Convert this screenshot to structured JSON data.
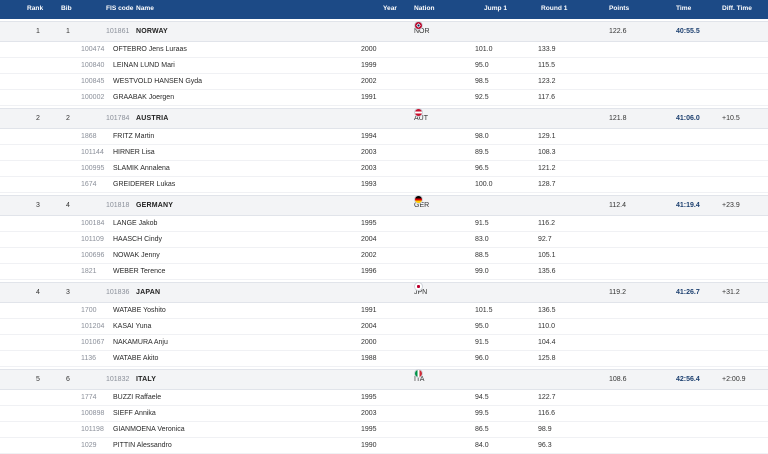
{
  "headers": {
    "rank": "Rank",
    "bib": "Bib",
    "fis_code": "FIS code",
    "name": "Name",
    "year": "Year",
    "nation": "Nation",
    "jump1": "Jump 1",
    "round1": "Round 1",
    "points": "Points",
    "time": "Time",
    "diff_time": "Diff. Time"
  },
  "teams": [
    {
      "rank": "1",
      "bib": "1",
      "fis": "101861",
      "name": "NORWAY",
      "nation": "NOR",
      "flag": "nor",
      "points": "122.6",
      "time": "40:55.5",
      "diff": "",
      "athletes": [
        {
          "fis": "100474",
          "name": "OFTEBRO Jens Luraas",
          "year": "2000",
          "jump1": "101.0",
          "round1": "133.9"
        },
        {
          "fis": "100840",
          "name": "LEINAN LUND Mari",
          "year": "1999",
          "jump1": "95.0",
          "round1": "115.5"
        },
        {
          "fis": "100845",
          "name": "WESTVOLD HANSEN Gyda",
          "year": "2002",
          "jump1": "98.5",
          "round1": "123.2"
        },
        {
          "fis": "100002",
          "name": "GRAABAK Joergen",
          "year": "1991",
          "jump1": "92.5",
          "round1": "117.6"
        }
      ]
    },
    {
      "rank": "2",
      "bib": "2",
      "fis": "101784",
      "name": "AUSTRIA",
      "nation": "AUT",
      "flag": "aut",
      "points": "121.8",
      "time": "41:06.0",
      "diff": "+10.5",
      "athletes": [
        {
          "fis": "1868",
          "name": "FRITZ Martin",
          "year": "1994",
          "jump1": "98.0",
          "round1": "129.1"
        },
        {
          "fis": "101144",
          "name": "HIRNER Lisa",
          "year": "2003",
          "jump1": "89.5",
          "round1": "108.3"
        },
        {
          "fis": "100995",
          "name": "SLAMIK Annalena",
          "year": "2003",
          "jump1": "96.5",
          "round1": "121.2"
        },
        {
          "fis": "1674",
          "name": "GREIDERER Lukas",
          "year": "1993",
          "jump1": "100.0",
          "round1": "128.7"
        }
      ]
    },
    {
      "rank": "3",
      "bib": "4",
      "fis": "101818",
      "name": "GERMANY",
      "nation": "GER",
      "flag": "ger",
      "points": "112.4",
      "time": "41:19.4",
      "diff": "+23.9",
      "athletes": [
        {
          "fis": "100184",
          "name": "LANGE Jakob",
          "year": "1995",
          "jump1": "91.5",
          "round1": "116.2"
        },
        {
          "fis": "101109",
          "name": "HAASCH Cindy",
          "year": "2004",
          "jump1": "83.0",
          "round1": "92.7"
        },
        {
          "fis": "100696",
          "name": "NOWAK Jenny",
          "year": "2002",
          "jump1": "88.5",
          "round1": "105.1"
        },
        {
          "fis": "1821",
          "name": "WEBER Terence",
          "year": "1996",
          "jump1": "99.0",
          "round1": "135.6"
        }
      ]
    },
    {
      "rank": "4",
      "bib": "3",
      "fis": "101836",
      "name": "JAPAN",
      "nation": "JPN",
      "flag": "jpn",
      "points": "119.2",
      "time": "41:26.7",
      "diff": "+31.2",
      "athletes": [
        {
          "fis": "1700",
          "name": "WATABE Yoshito",
          "year": "1991",
          "jump1": "101.5",
          "round1": "136.5"
        },
        {
          "fis": "101204",
          "name": "KASAI Yuna",
          "year": "2004",
          "jump1": "95.0",
          "round1": "110.0"
        },
        {
          "fis": "101067",
          "name": "NAKAMURA Anju",
          "year": "2000",
          "jump1": "91.5",
          "round1": "104.4"
        },
        {
          "fis": "1136",
          "name": "WATABE Akito",
          "year": "1988",
          "jump1": "96.0",
          "round1": "125.8"
        }
      ]
    },
    {
      "rank": "5",
      "bib": "6",
      "fis": "101832",
      "name": "ITALY",
      "nation": "ITA",
      "flag": "ita",
      "points": "108.6",
      "time": "42:56.4",
      "diff": "+2:00.9",
      "athletes": [
        {
          "fis": "1774",
          "name": "BUZZI Raffaele",
          "year": "1995",
          "jump1": "94.5",
          "round1": "122.7"
        },
        {
          "fis": "100898",
          "name": "SIEFF Annika",
          "year": "2003",
          "jump1": "99.5",
          "round1": "116.6"
        },
        {
          "fis": "101198",
          "name": "GIANMOENA Veronica",
          "year": "1995",
          "jump1": "86.5",
          "round1": "98.9"
        },
        {
          "fis": "1029",
          "name": "PITTIN Alessandro",
          "year": "1990",
          "jump1": "84.0",
          "round1": "96.3"
        }
      ]
    }
  ]
}
